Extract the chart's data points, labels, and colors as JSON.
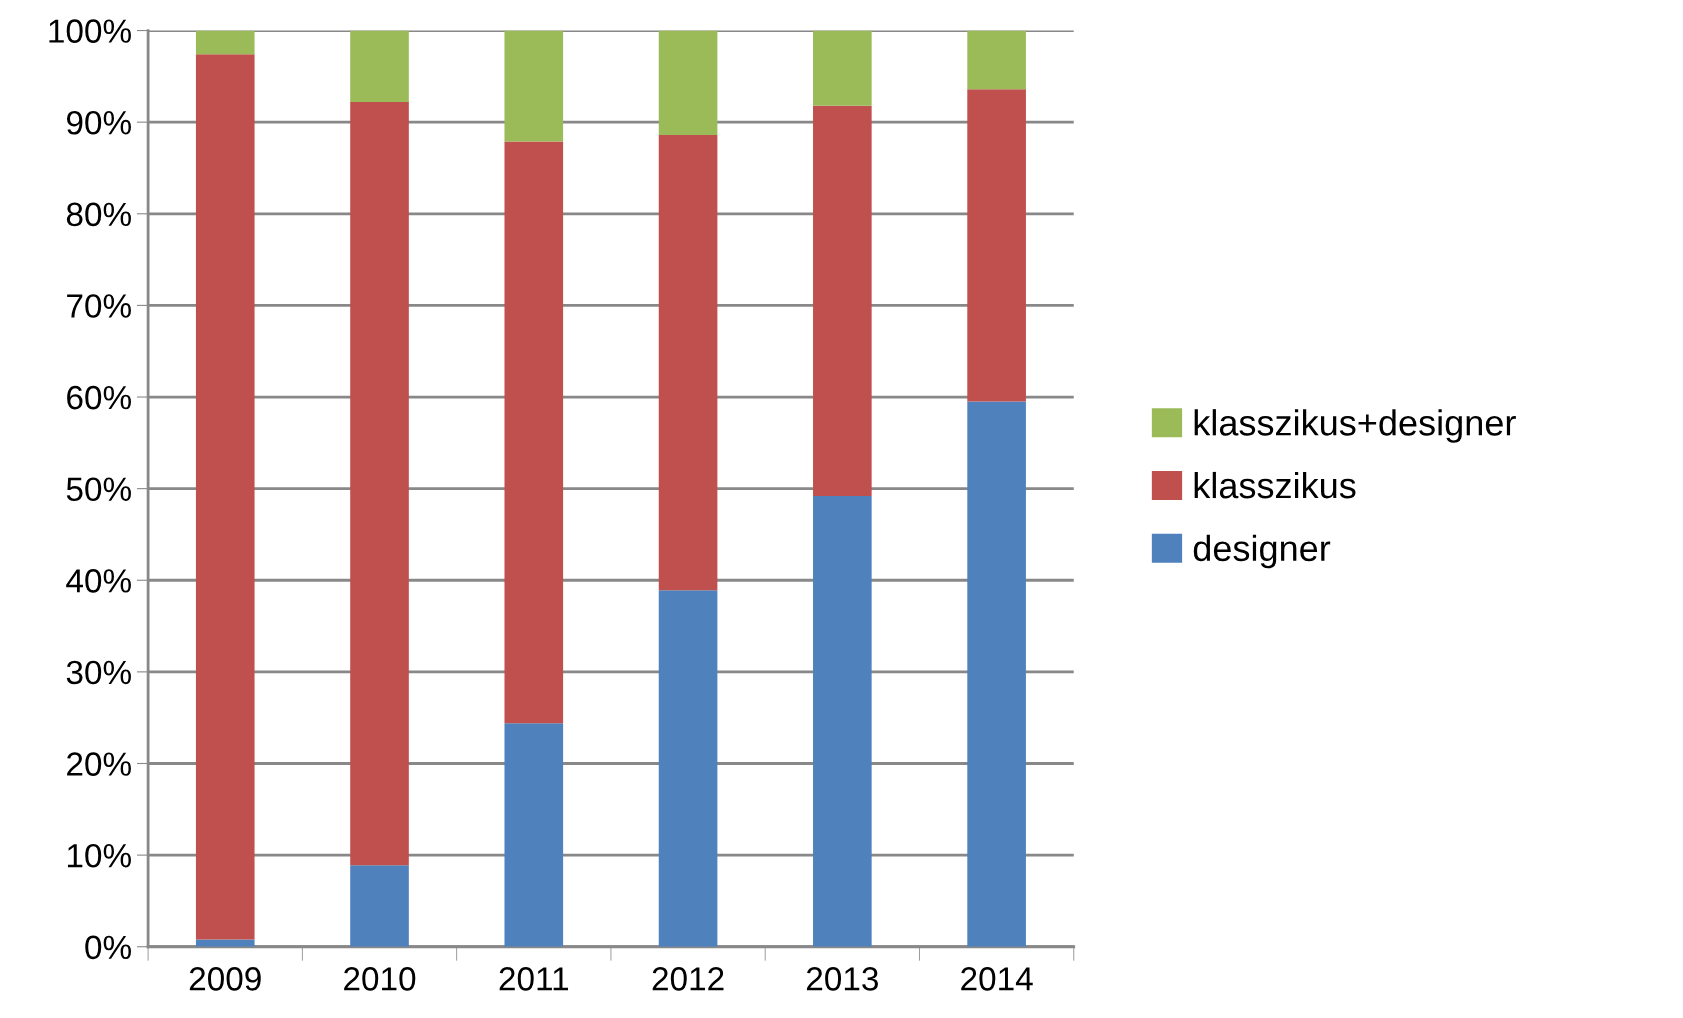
{
  "chart_data": {
    "type": "bar",
    "stacked": true,
    "categories": [
      "2009",
      "2010",
      "2011",
      "2012",
      "2013",
      "2014"
    ],
    "series": [
      {
        "name": "designer",
        "color": "#4f81bd",
        "values": [
          0.8,
          8.9,
          24.4,
          38.9,
          49.2,
          59.5
        ]
      },
      {
        "name": "klasszikus",
        "color": "#c0504d",
        "values": [
          96.6,
          83.3,
          63.5,
          49.7,
          42.6,
          34.1
        ]
      },
      {
        "name": "klasszikus+designer",
        "color": "#9bbb59",
        "values": [
          2.6,
          7.8,
          12.1,
          11.4,
          8.2,
          6.4
        ]
      }
    ],
    "ylim": [
      0,
      100
    ],
    "yticks": [
      {
        "value": 0,
        "label": "0%"
      },
      {
        "value": 10,
        "label": "10%"
      },
      {
        "value": 20,
        "label": "20%"
      },
      {
        "value": 30,
        "label": "30%"
      },
      {
        "value": 40,
        "label": "40%"
      },
      {
        "value": 50,
        "label": "50%"
      },
      {
        "value": 60,
        "label": "60%"
      },
      {
        "value": 70,
        "label": "70%"
      },
      {
        "value": 80,
        "label": "80%"
      },
      {
        "value": 90,
        "label": "90%"
      },
      {
        "value": 100,
        "label": "100%"
      }
    ],
    "grid": "y",
    "legend": "right"
  }
}
